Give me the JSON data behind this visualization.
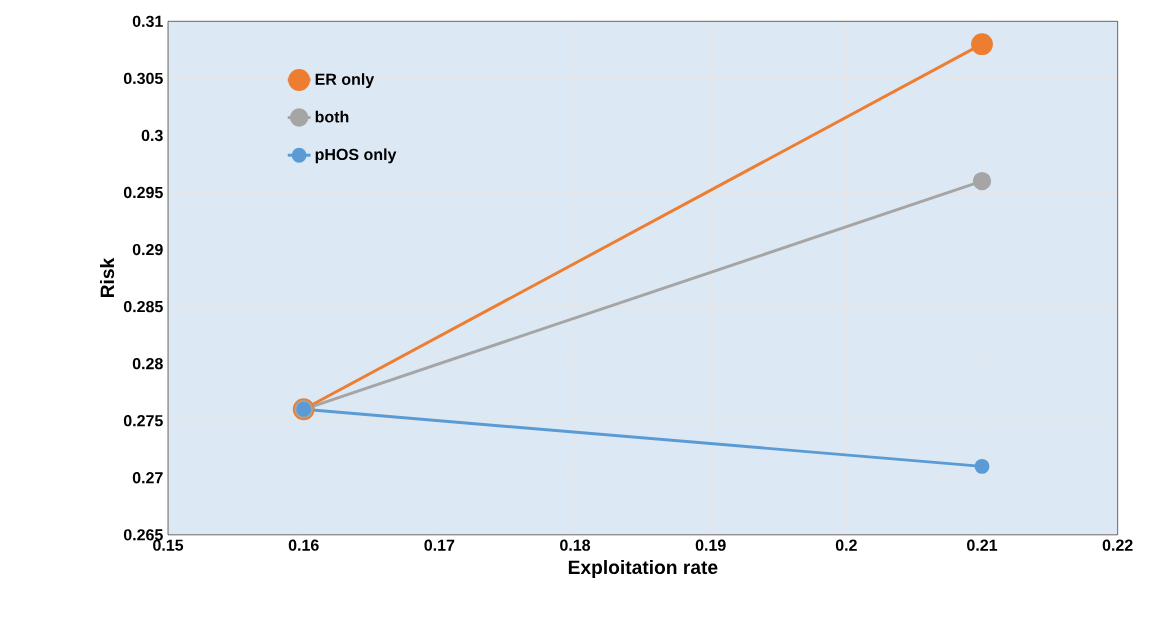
{
  "chart_data": {
    "type": "line",
    "xlabel": "Exploitation  rate",
    "ylabel": "Risk",
    "series": [
      {
        "name": "ER only",
        "color": "#ed7d31",
        "values": [
          0.276,
          0.308
        ]
      },
      {
        "name": "both",
        "color": "#a5a5a5",
        "values": [
          0.276,
          0.296
        ]
      },
      {
        "name": "pHOS only",
        "color": "#5b9bd5",
        "values": [
          0.276,
          0.271
        ]
      }
    ],
    "x": [
      0.16,
      0.21
    ],
    "xlim": [
      0.15,
      0.22
    ],
    "xticks": [
      0.15,
      0.16,
      0.17,
      0.18,
      0.19,
      0.2,
      0.21,
      0.22
    ],
    "ylim": [
      0.265,
      0.31
    ],
    "yticks": [
      0.265,
      0.27,
      0.275,
      0.28,
      0.285,
      0.29,
      0.295,
      0.3,
      0.305,
      0.31
    ],
    "grid": true,
    "legend": "top left",
    "marker": "circle",
    "line_style": "solid"
  }
}
